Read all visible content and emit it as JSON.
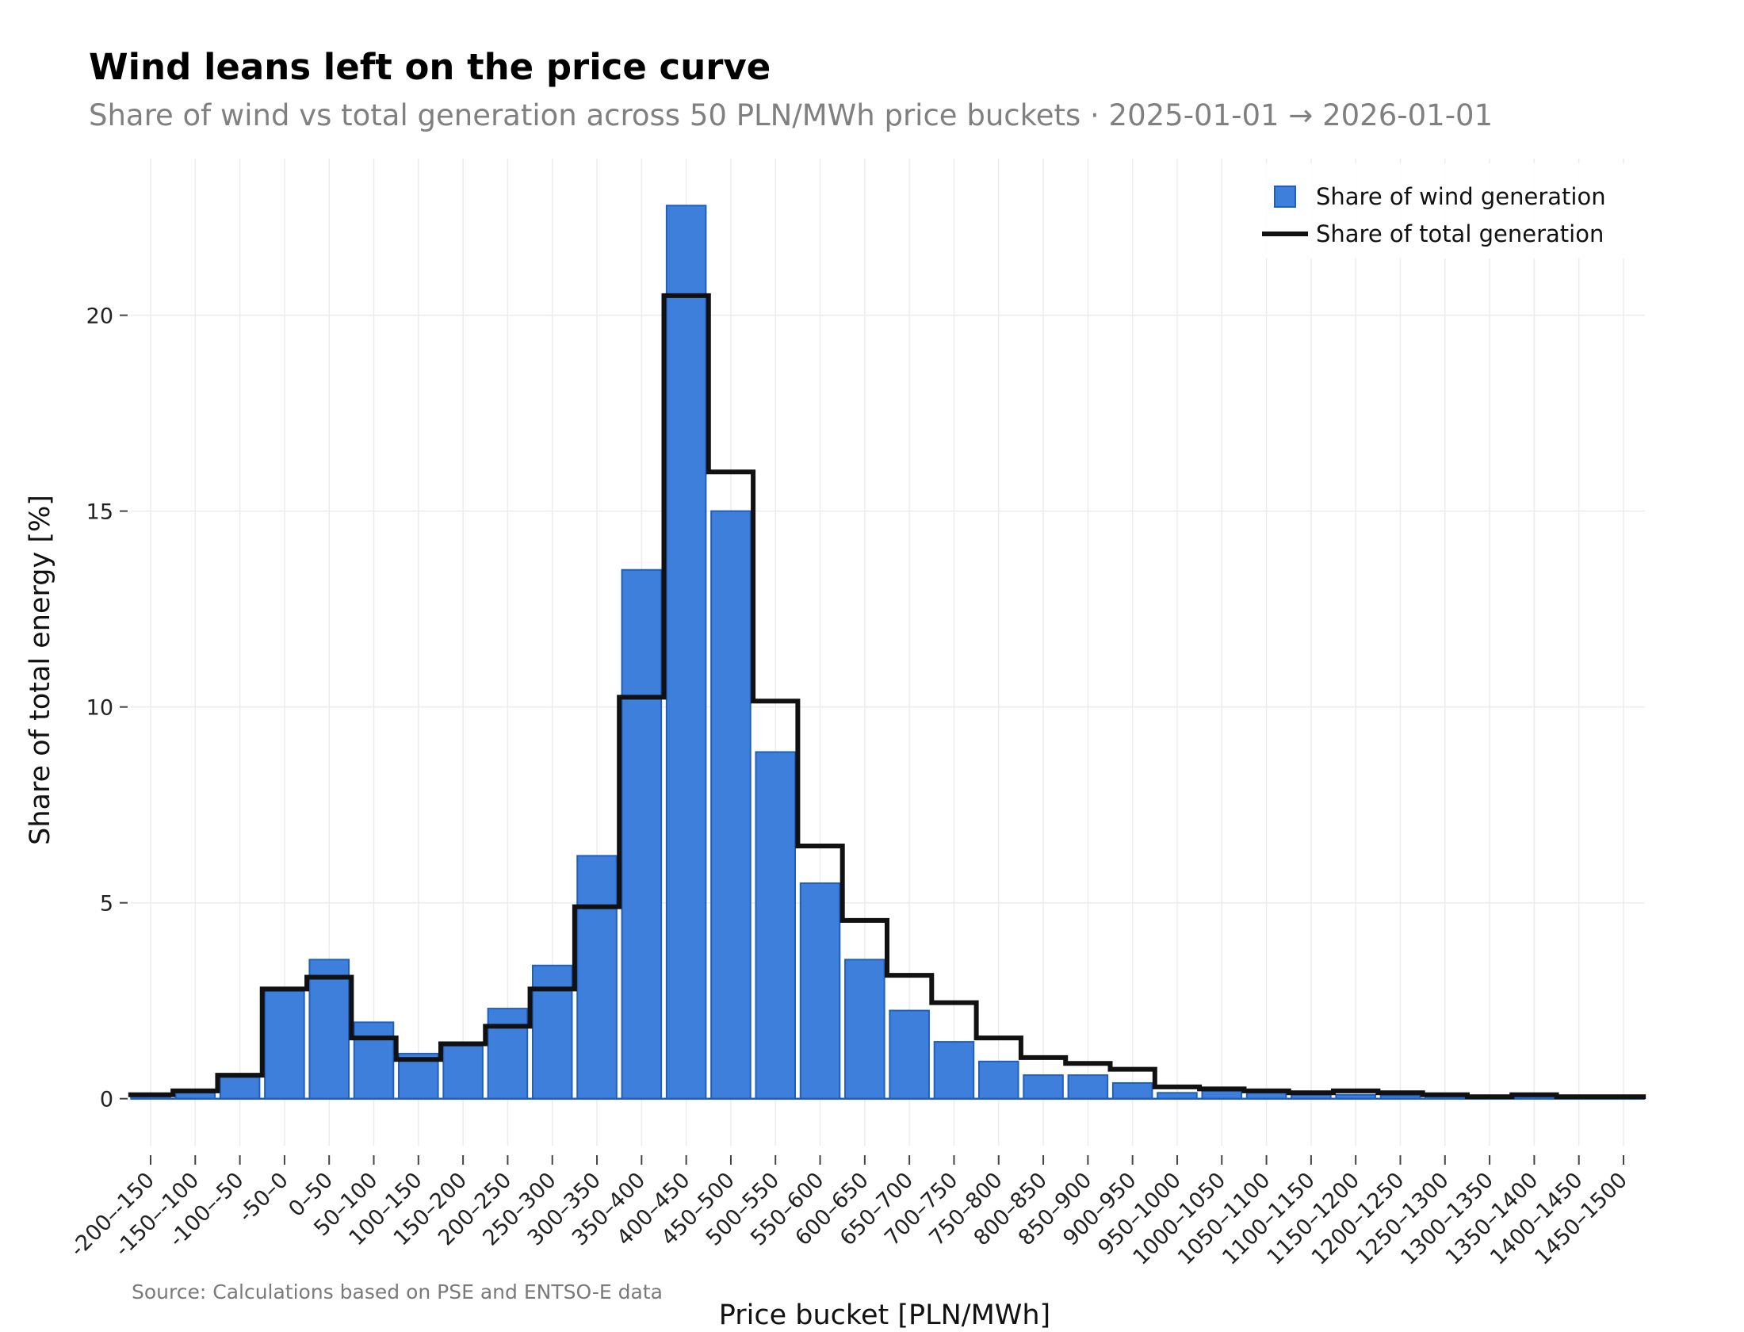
{
  "colors": {
    "wind_fill": "#3f7fdc",
    "wind_stroke": "#1f5fc0",
    "total_line": "#111111",
    "grid": "#ececec",
    "axis_line": "#1f5fc0"
  },
  "chart_data": {
    "type": "bar",
    "title": "Wind leans left on the price curve",
    "subtitle": "Share of wind vs total generation across 50 PLN/MWh price buckets · 2025-01-01 → 2026-01-01",
    "xlabel": "Price bucket [PLN/MWh]",
    "ylabel": "Share of total energy [%]",
    "ylim": [
      -1.2,
      24.0
    ],
    "yticks": [
      0,
      5,
      10,
      15,
      20
    ],
    "grid": true,
    "legend_position": "top-right",
    "source": "Source: Calculations based on PSE and ENTSO-E data",
    "categories": [
      "-200–-150",
      "-150–-100",
      "-100–-50",
      "-50–0",
      "0–50",
      "50–100",
      "100–150",
      "150–200",
      "200–250",
      "250–300",
      "300–350",
      "350–400",
      "400–450",
      "450–500",
      "500–550",
      "550–600",
      "600–650",
      "650–700",
      "700–750",
      "750–800",
      "800–850",
      "850–900",
      "900–950",
      "950–1000",
      "1000–1050",
      "1050–1100",
      "1100–1150",
      "1150–1200",
      "1200–1250",
      "1250–1300",
      "1300–1350",
      "1350–1400",
      "1400–1450",
      "1450–1500"
    ],
    "series": [
      {
        "name": "Share of wind generation",
        "kind": "bar",
        "values": [
          0.05,
          0.15,
          0.55,
          2.75,
          3.55,
          1.95,
          1.15,
          1.35,
          2.3,
          3.4,
          6.2,
          13.5,
          22.8,
          15.0,
          8.85,
          5.5,
          3.55,
          2.25,
          1.45,
          0.95,
          0.6,
          0.6,
          0.4,
          0.15,
          0.2,
          0.15,
          0.1,
          0.1,
          0.08,
          0.05,
          0.05,
          0.05,
          0.05,
          0.05
        ]
      },
      {
        "name": "Share of total generation",
        "kind": "step",
        "values": [
          0.1,
          0.2,
          0.6,
          2.8,
          3.1,
          1.55,
          1.0,
          1.4,
          1.85,
          2.8,
          4.9,
          10.25,
          20.5,
          16.0,
          10.15,
          6.45,
          4.55,
          3.15,
          2.45,
          1.55,
          1.05,
          0.9,
          0.75,
          0.3,
          0.25,
          0.2,
          0.15,
          0.2,
          0.15,
          0.1,
          0.05,
          0.1,
          0.05,
          0.05
        ]
      }
    ]
  }
}
